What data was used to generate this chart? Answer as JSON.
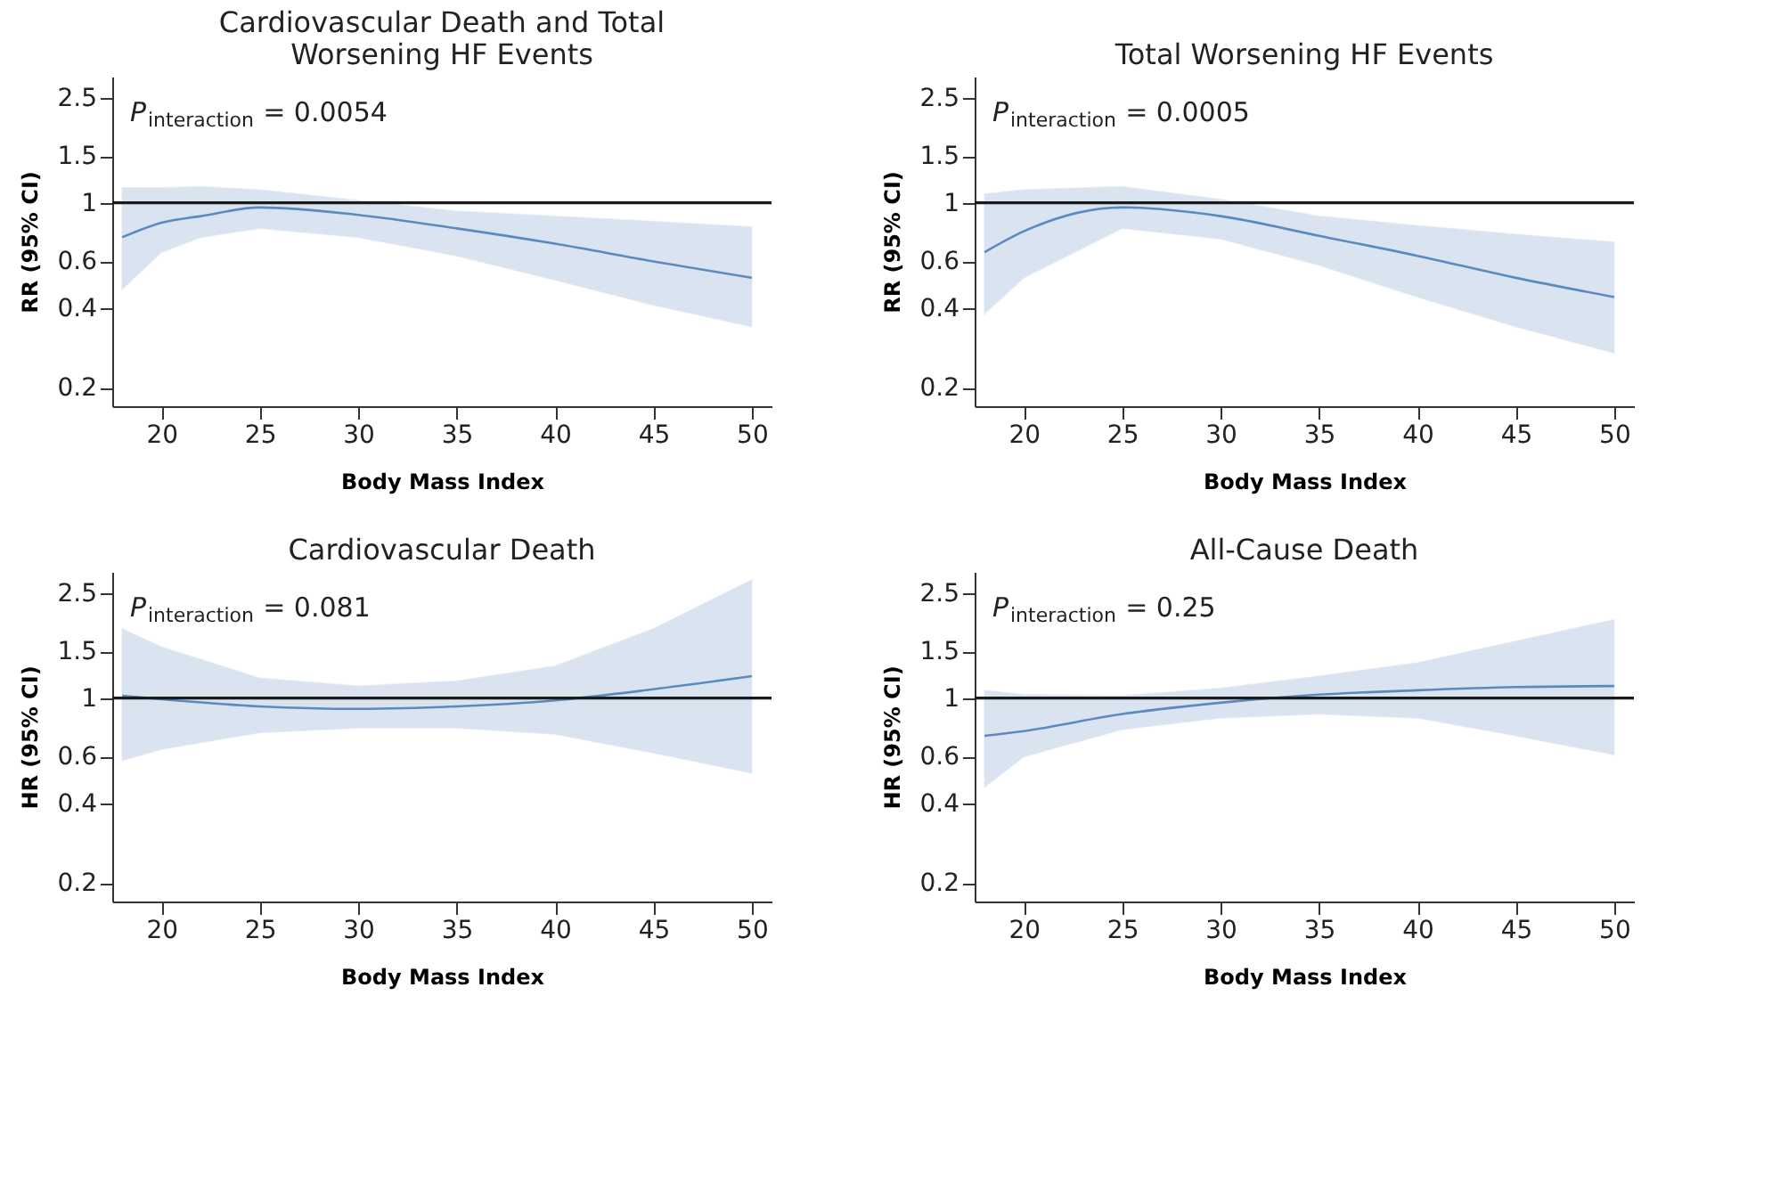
{
  "chart_data": [
    {
      "type": "line",
      "title": "Cardiovascular Death and Total Worsening HF Events",
      "xlabel": "Body Mass Index",
      "ylabel": "RR (95% CI)",
      "log": "y",
      "xlim": [
        17.5,
        51
      ],
      "xticks": [
        20,
        25,
        30,
        35,
        40,
        45,
        50
      ],
      "ylim": [
        0.17,
        3.0
      ],
      "yticks": [
        0.2,
        0.4,
        0.6,
        1,
        1.5,
        2.5
      ],
      "grid": false,
      "annotations": [
        "P$_{interaction}$ = 0.0054"
      ],
      "ref_lines": [
        {
          "axis": "y",
          "value": 1,
          "color": "#1a1a1a"
        }
      ],
      "series": [
        {
          "color": "#5b8ac0",
          "x": [
            18,
            20,
            22,
            25,
            30,
            35,
            40,
            45,
            50
          ],
          "values": [
            0.74,
            0.84,
            0.89,
            0.96,
            0.9,
            0.8,
            0.7,
            0.6,
            0.52
          ],
          "lower": [
            0.47,
            0.65,
            0.74,
            0.8,
            0.74,
            0.63,
            0.51,
            0.41,
            0.34
          ],
          "upper": [
            1.14,
            1.14,
            1.15,
            1.12,
            1.02,
            0.93,
            0.89,
            0.85,
            0.81
          ]
        }
      ]
    },
    {
      "type": "line",
      "title": "Total Worsening HF Events",
      "xlabel": "Body Mass Index",
      "ylabel": "RR (95% CI)",
      "log": "y",
      "xlim": [
        17.5,
        51
      ],
      "xticks": [
        20,
        25,
        30,
        35,
        40,
        45,
        50
      ],
      "ylim": [
        0.17,
        3.0
      ],
      "yticks": [
        0.2,
        0.4,
        0.6,
        1,
        1.5,
        2.5
      ],
      "grid": false,
      "annotations": [
        "P$_{interaction}$ = 0.0005"
      ],
      "ref_lines": [
        {
          "axis": "y",
          "value": 1,
          "color": "#1a1a1a"
        }
      ],
      "series": [
        {
          "color": "#5b8ac0",
          "x": [
            18,
            20,
            25,
            30,
            35,
            40,
            45,
            50
          ],
          "values": [
            0.65,
            0.78,
            0.96,
            0.89,
            0.75,
            0.63,
            0.52,
            0.44
          ],
          "lower": [
            0.38,
            0.52,
            0.8,
            0.73,
            0.58,
            0.44,
            0.34,
            0.27
          ],
          "upper": [
            1.08,
            1.12,
            1.15,
            1.03,
            0.89,
            0.82,
            0.76,
            0.71
          ]
        }
      ]
    },
    {
      "type": "line",
      "title": "Cardiovascular Death",
      "xlabel": "Body Mass Index",
      "ylabel": "HR (95% CI)",
      "log": "y",
      "xlim": [
        17.5,
        51
      ],
      "xticks": [
        20,
        25,
        30,
        35,
        40,
        45,
        50
      ],
      "ylim": [
        0.17,
        3.0
      ],
      "yticks": [
        0.2,
        0.4,
        0.6,
        1,
        1.5,
        2.5
      ],
      "grid": false,
      "annotations": [
        "P$_{interaction}$ = 0.081"
      ],
      "ref_lines": [
        {
          "axis": "y",
          "value": 1,
          "color": "#1a1a1a"
        }
      ],
      "series": [
        {
          "color": "#5b8ac0",
          "x": [
            18,
            20,
            25,
            30,
            35,
            40,
            45,
            50
          ],
          "values": [
            1.02,
            0.99,
            0.93,
            0.91,
            0.93,
            0.98,
            1.08,
            1.21
          ],
          "lower": [
            0.58,
            0.64,
            0.74,
            0.77,
            0.77,
            0.73,
            0.62,
            0.52
          ],
          "upper": [
            1.83,
            1.56,
            1.19,
            1.11,
            1.16,
            1.32,
            1.83,
            2.8
          ]
        }
      ]
    },
    {
      "type": "line",
      "title": "All-Cause Death",
      "xlabel": "Body Mass Index",
      "ylabel": "HR (95% CI)",
      "log": "y",
      "xlim": [
        17.5,
        51
      ],
      "xticks": [
        20,
        25,
        30,
        35,
        40,
        45,
        50
      ],
      "ylim": [
        0.17,
        3.0
      ],
      "yticks": [
        0.2,
        0.4,
        0.6,
        1,
        1.5,
        2.5
      ],
      "grid": false,
      "annotations": [
        "P$_{interaction}$ = 0.25"
      ],
      "ref_lines": [
        {
          "axis": "y",
          "value": 1,
          "color": "#1a1a1a"
        }
      ],
      "series": [
        {
          "color": "#5b8ac0",
          "x": [
            18,
            20,
            25,
            30,
            35,
            40,
            45,
            50
          ],
          "values": [
            0.72,
            0.75,
            0.87,
            0.96,
            1.03,
            1.07,
            1.1,
            1.11
          ],
          "lower": [
            0.46,
            0.6,
            0.76,
            0.84,
            0.87,
            0.84,
            0.72,
            0.61
          ],
          "upper": [
            1.07,
            1.03,
            1.02,
            1.09,
            1.21,
            1.36,
            1.64,
            1.98
          ]
        }
      ]
    }
  ]
}
